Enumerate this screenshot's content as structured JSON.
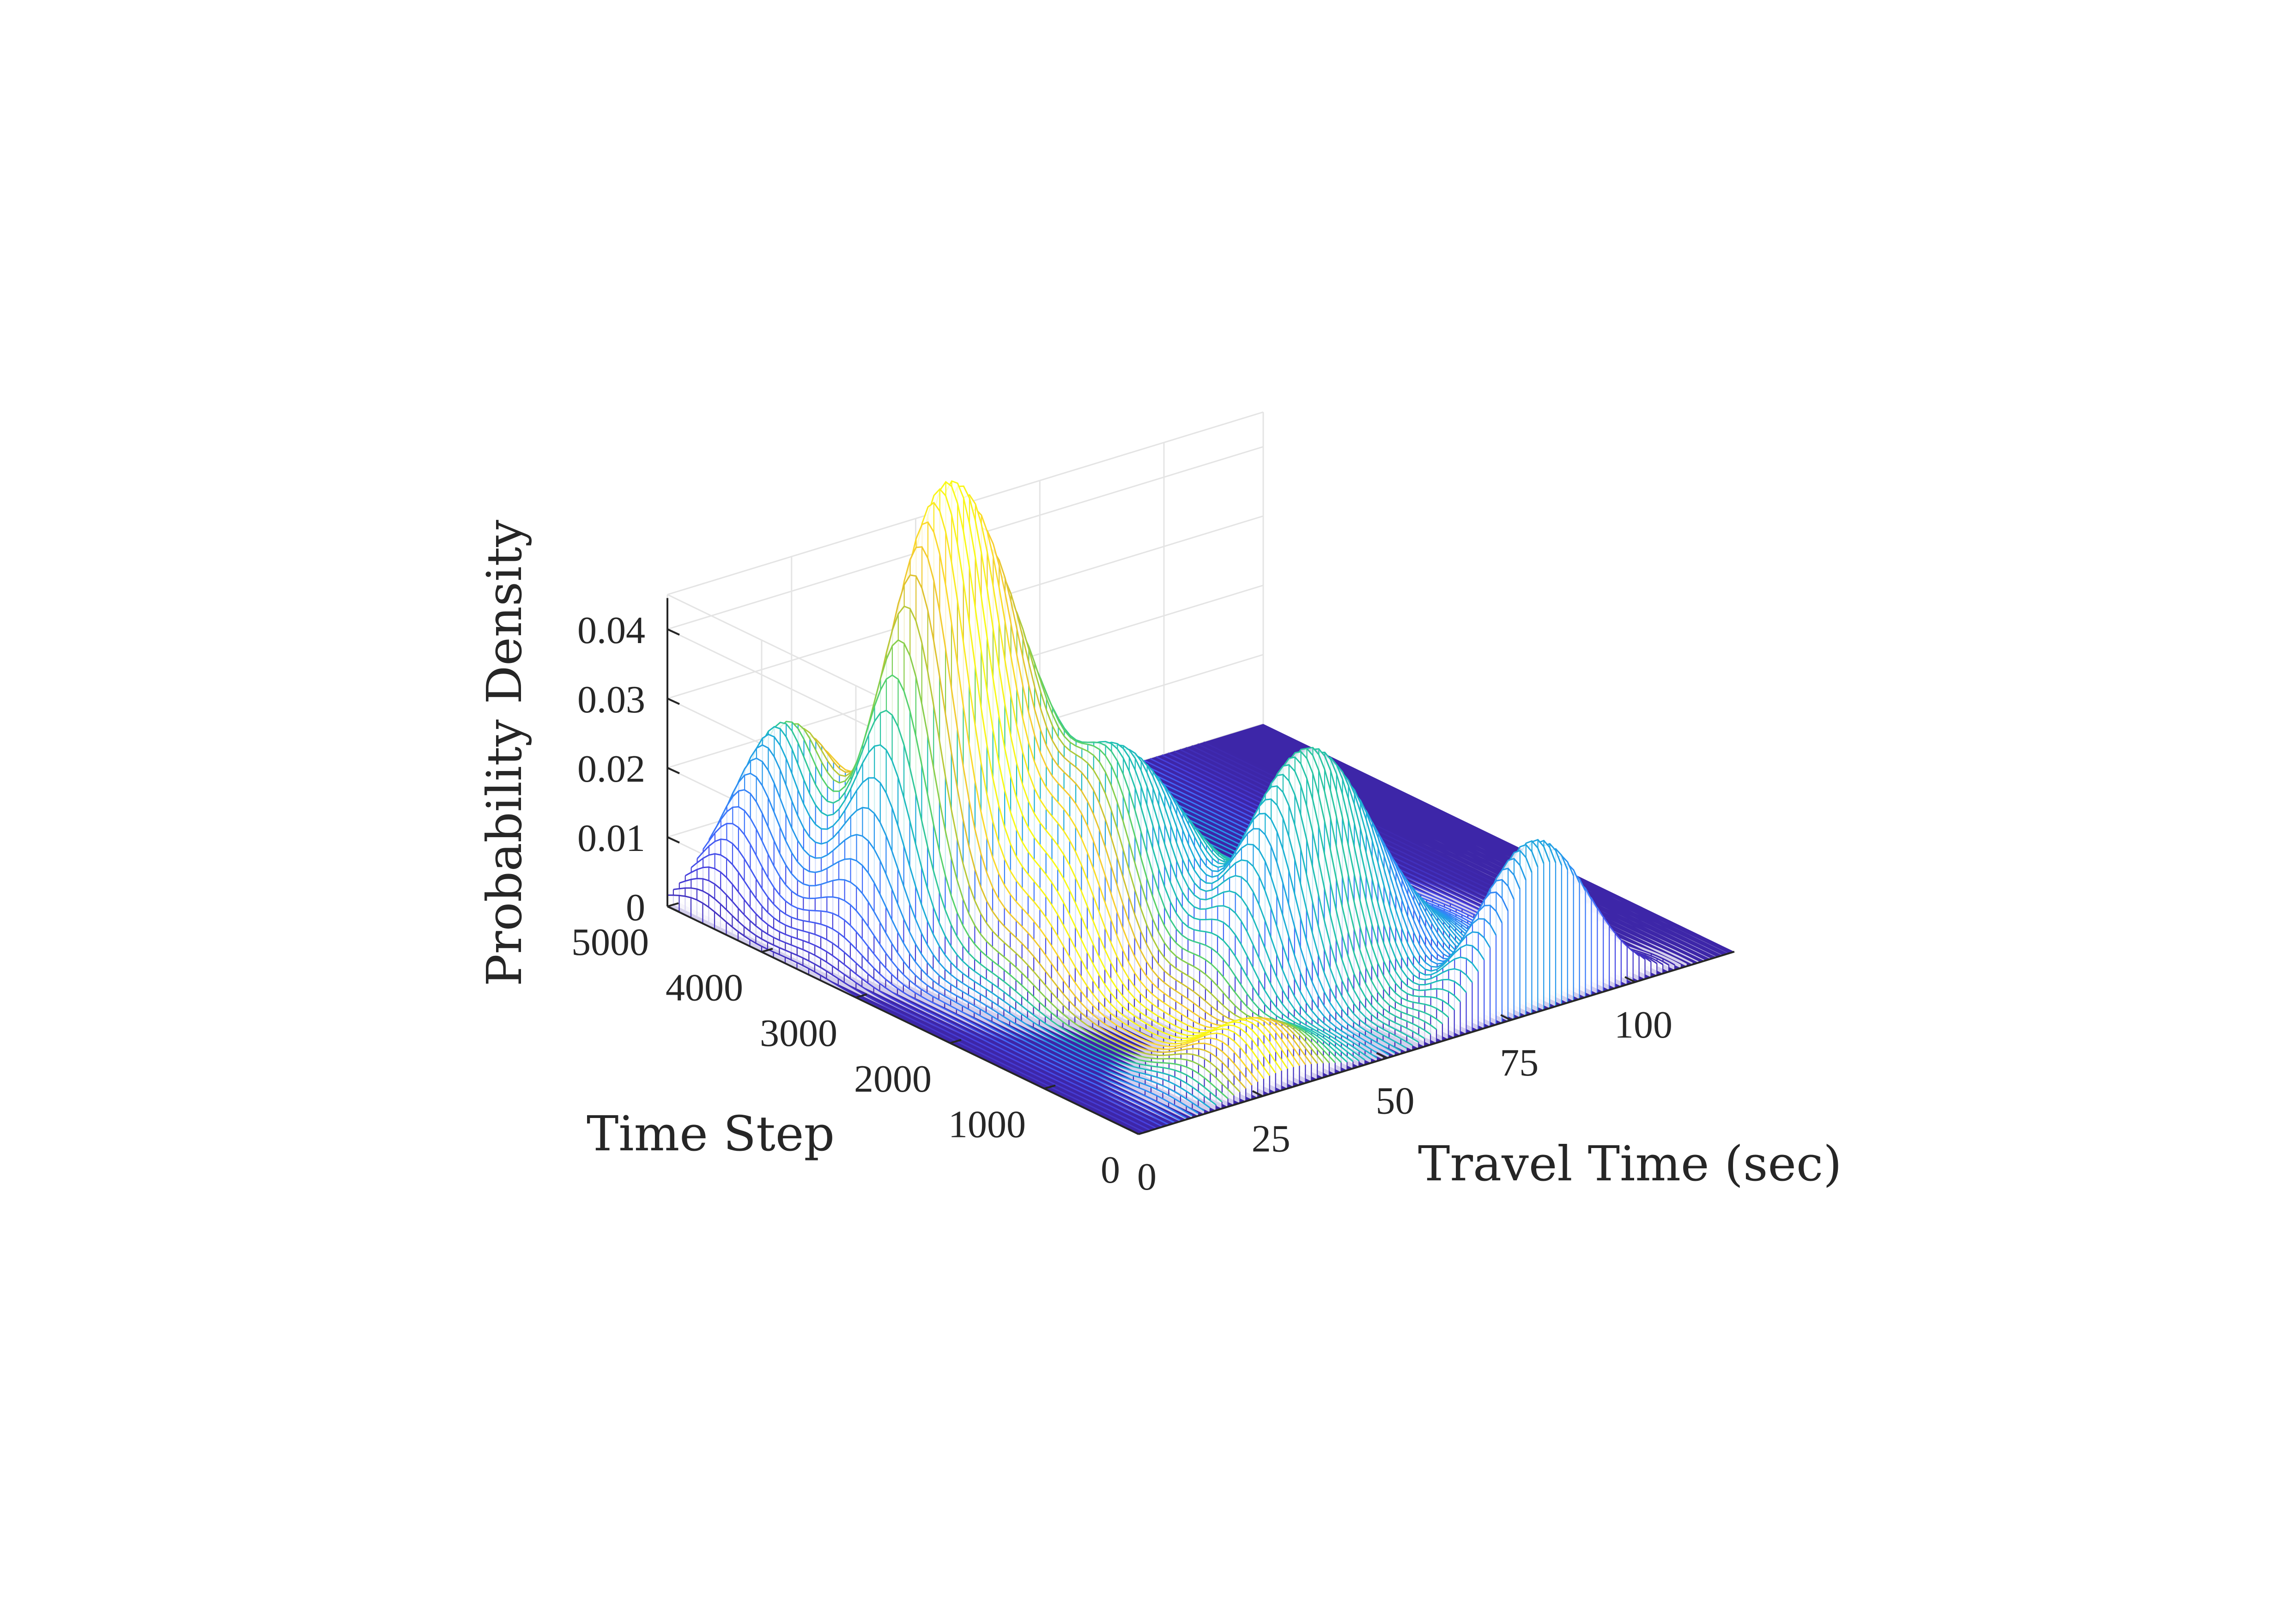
{
  "chart_data": {
    "type": "surface-3d",
    "title": "",
    "xlabel": "Travel Time (sec)",
    "ylabel": "Time Step",
    "zlabel": "Probability Density",
    "x_ticks": [
      "0",
      "25",
      "50",
      "75",
      "100"
    ],
    "y_ticks": [
      "0",
      "1000",
      "2000",
      "3000",
      "4000",
      "5000"
    ],
    "z_ticks": [
      "0",
      "0.01",
      "0.02",
      "0.03",
      "0.04"
    ],
    "xlim": [
      0,
      120
    ],
    "ylim": [
      0,
      5000
    ],
    "zlim": [
      0,
      0.045
    ],
    "grid": true,
    "colormap": "parula",
    "floor_color": "#3d26a8",
    "peaks": [
      {
        "x": 16,
        "y": 4700,
        "z": 0.0205,
        "sx": 8,
        "sy": 280
      },
      {
        "x": 23,
        "y": 4150,
        "z": 0.013,
        "sx": 9,
        "sy": 420
      },
      {
        "x": 26,
        "y": 3550,
        "z": 0.043,
        "sx": 9,
        "sy": 300
      },
      {
        "x": 34,
        "y": 3250,
        "z": 0.032,
        "sx": 10,
        "sy": 330
      },
      {
        "x": 42,
        "y": 2450,
        "z": 0.029,
        "sx": 12,
        "sy": 380
      },
      {
        "x": 58,
        "y": 1350,
        "z": 0.0255,
        "sx": 11,
        "sy": 300
      },
      {
        "x": 68,
        "y": 1550,
        "z": 0.011,
        "sx": 12,
        "sy": 500
      },
      {
        "x": 82,
        "y": 120,
        "z": 0.0235,
        "sx": 10,
        "sy": 260
      },
      {
        "x": 30,
        "y": 400,
        "z": 0.007,
        "sx": 9,
        "sy": 300
      }
    ]
  }
}
